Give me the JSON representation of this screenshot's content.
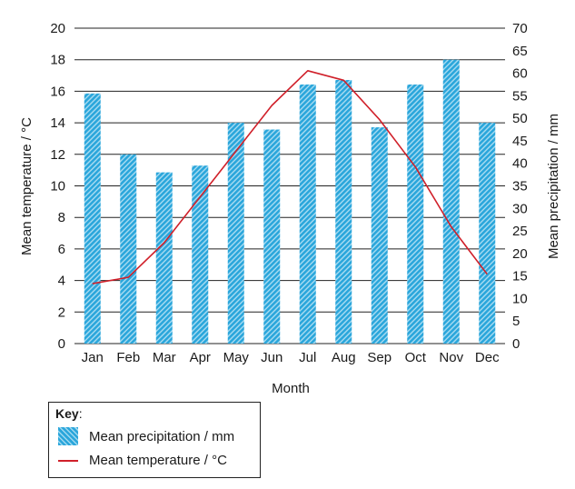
{
  "chart_data": {
    "type": "bar+line",
    "categories": [
      "Jan",
      "Feb",
      "Mar",
      "Apr",
      "May",
      "Jun",
      "Jul",
      "Aug",
      "Sep",
      "Oct",
      "Nov",
      "Dec"
    ],
    "series": [
      {
        "name": "Mean precipitation / mm",
        "type": "bar",
        "axis": "right",
        "values": [
          55.5,
          42,
          38,
          39.5,
          49,
          47.5,
          57.5,
          58.5,
          48,
          57.5,
          63,
          49
        ]
      },
      {
        "name": "Mean temperature / °C",
        "type": "line",
        "axis": "left",
        "values": [
          3.8,
          4.2,
          6.4,
          9.3,
          12.2,
          15.1,
          17.3,
          16.7,
          14.2,
          11.2,
          7.4,
          4.4
        ]
      }
    ],
    "xlabel": "Month",
    "ylabel_left": "Mean temperature / °C",
    "ylabel_right": "Mean precipitation / mm",
    "ylim_left": [
      0,
      20
    ],
    "yticks_left": [
      "0",
      "2",
      "4",
      "6",
      "8",
      "10",
      "12",
      "14",
      "16",
      "18",
      "20"
    ],
    "ylim_right": [
      0,
      70
    ],
    "yticks_right": [
      "0",
      "5",
      "10",
      "15",
      "20",
      "25",
      "30",
      "35",
      "40",
      "45",
      "50",
      "55",
      "60",
      "65",
      "70"
    ],
    "grid": true,
    "colors": {
      "bar": "#2aa6db",
      "bar_hatch": "#9fd8f0",
      "line": "#d0202a",
      "grid": "#222222"
    }
  },
  "key": {
    "title": "Key",
    "title_suffix": ":",
    "items": [
      {
        "label": "Mean precipitation / mm",
        "swatch": "bar"
      },
      {
        "label": "Mean temperature / °C",
        "swatch": "line"
      }
    ]
  }
}
